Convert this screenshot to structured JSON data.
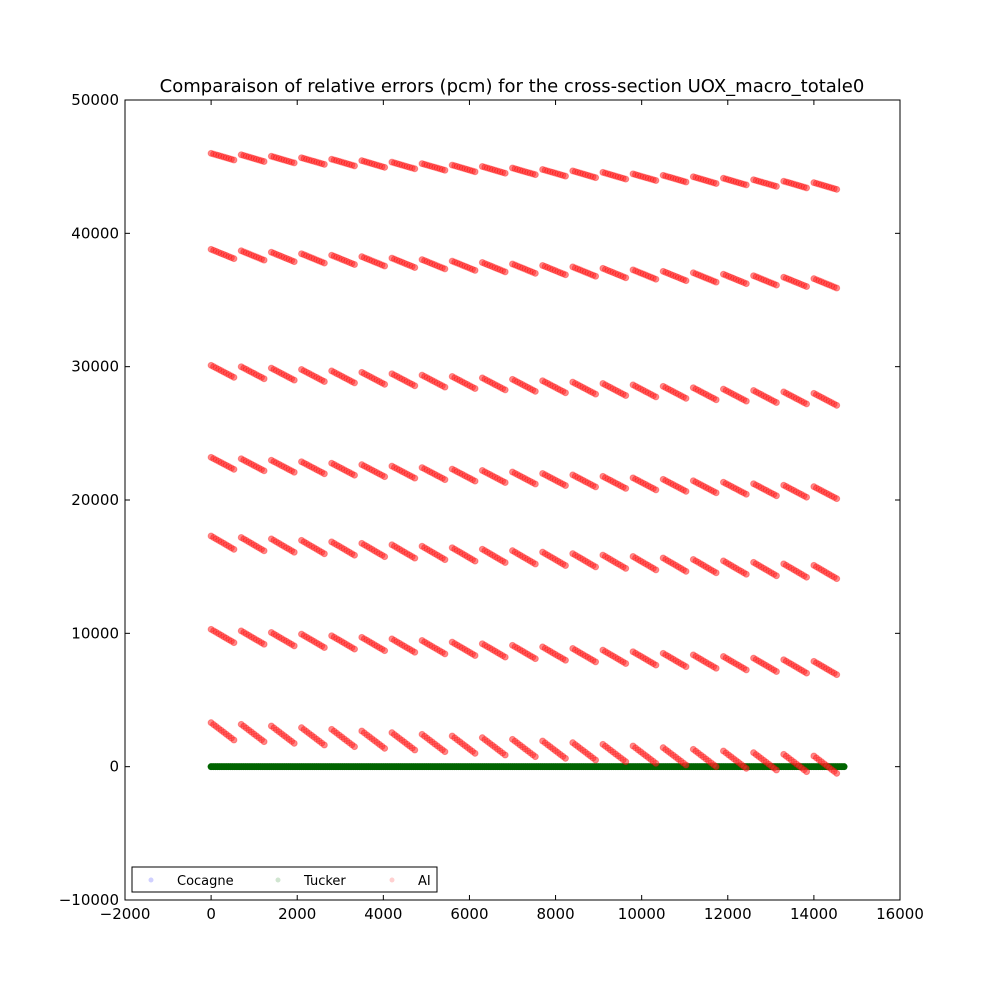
{
  "chart_data": {
    "type": "scatter",
    "title": "Comparaison of relative errors (pcm) for the cross-section UOX_macro_totale0",
    "xlabel": "",
    "ylabel": "",
    "xlim": [
      -2000,
      16000
    ],
    "ylim": [
      -10000,
      50000
    ],
    "x_ticks": [
      -2000,
      0,
      2000,
      4000,
      6000,
      8000,
      10000,
      12000,
      14000,
      16000
    ],
    "y_ticks": [
      -10000,
      0,
      10000,
      20000,
      30000,
      40000,
      50000
    ],
    "x_tick_labels": [
      "−2000",
      "0",
      "2000",
      "4000",
      "6000",
      "8000",
      "10000",
      "12000",
      "14000",
      "16000"
    ],
    "y_tick_labels": [
      "−10000",
      "0",
      "10000",
      "20000",
      "30000",
      "40000",
      "50000"
    ],
    "grid": false,
    "legend": {
      "position": "lower-left",
      "columns": 3
    },
    "x_range": [
      0,
      14700
    ],
    "series": [
      {
        "name": "Cocagne",
        "color": "#0000ff",
        "marker": "circle",
        "alpha": 0.1,
        "values": []
      },
      {
        "name": "Tucker",
        "color": "#008000",
        "marker": "circle",
        "alpha": 0.1,
        "constant_value": 0
      },
      {
        "name": "AI",
        "color": "#ff0000",
        "marker": "circle",
        "alpha": 0.1,
        "segment_count": 21,
        "segment_length_x": 530,
        "bands": [
          {
            "start": 46000,
            "end": 43300,
            "segment_drop": 500
          },
          {
            "start": 38800,
            "end": 35900,
            "segment_drop": 700
          },
          {
            "start": 30100,
            "end": 27100,
            "segment_drop": 900
          },
          {
            "start": 23200,
            "end": 20100,
            "segment_drop": 900
          },
          {
            "start": 17300,
            "end": 14100,
            "segment_drop": 1000
          },
          {
            "start": 10300,
            "end": 6900,
            "segment_drop": 1000
          },
          {
            "start": 3300,
            "end": -500,
            "segment_drop": 1300
          }
        ]
      }
    ]
  }
}
